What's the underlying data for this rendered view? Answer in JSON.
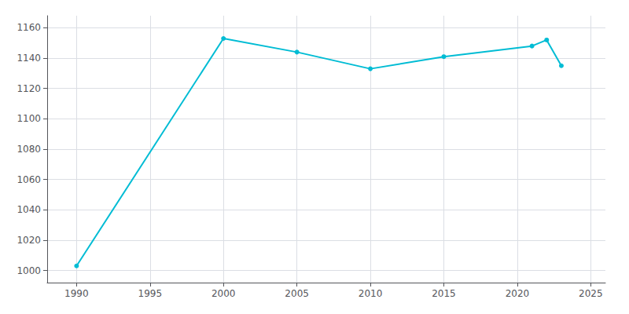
{
  "chart_data": {
    "type": "line",
    "x": [
      1990,
      2000,
      2005,
      2010,
      2015,
      2021,
      2022,
      2023
    ],
    "values": [
      1003,
      1153,
      1144,
      1133,
      1141,
      1148,
      1152,
      1135
    ],
    "color": "#00BCD4",
    "marker": "circle",
    "xlim": [
      1988,
      2026
    ],
    "ylim": [
      992,
      1168
    ],
    "xticks": [
      1990,
      1995,
      2000,
      2005,
      2010,
      2015,
      2020,
      2025
    ],
    "yticks": [
      1000,
      1020,
      1040,
      1060,
      1080,
      1100,
      1120,
      1140,
      1160
    ],
    "grid": true
  }
}
